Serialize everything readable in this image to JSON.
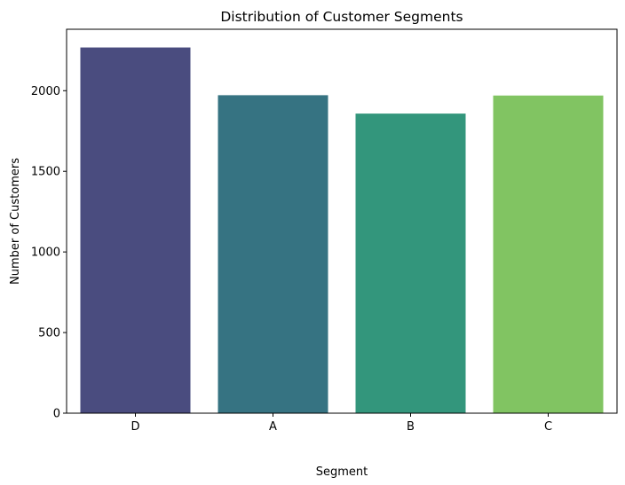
{
  "chart_data": {
    "type": "bar",
    "title": "Distribution of Customer Segments",
    "xlabel": "Segment",
    "ylabel": "Number of Customers",
    "categories": [
      "D",
      "A",
      "B",
      "C"
    ],
    "values": [
      2268,
      1972,
      1858,
      1970
    ],
    "colors": [
      "#4a4c7f",
      "#367382",
      "#33967c",
      "#81c462"
    ],
    "ylim": [
      0,
      2381
    ],
    "yticks": [
      0,
      500,
      1000,
      1500,
      2000
    ],
    "grid": false,
    "legend": "none"
  }
}
